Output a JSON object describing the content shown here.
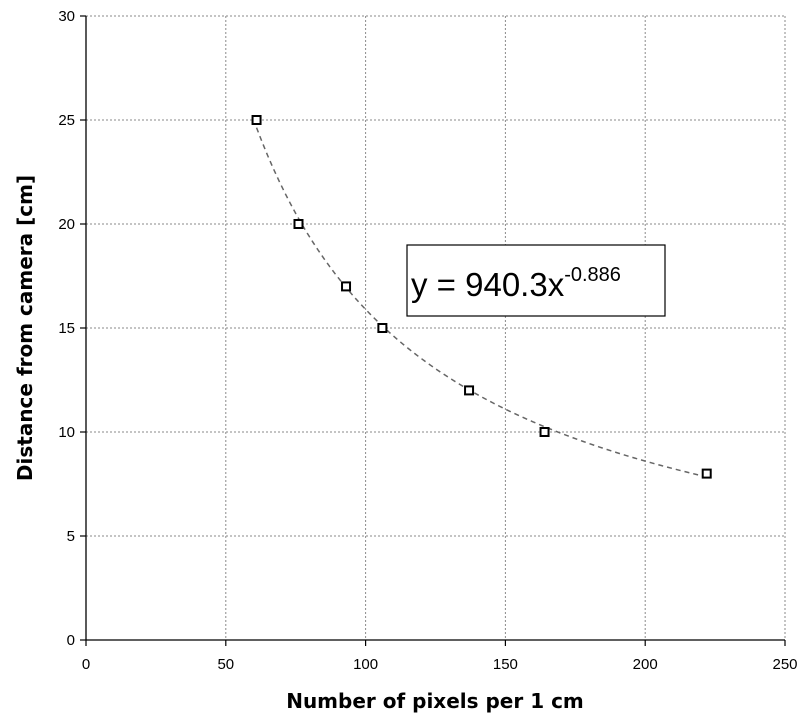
{
  "chart_data": {
    "type": "scatter",
    "xlabel": "Number of pixels per 1 cm",
    "ylabel": "Distance from camera [cm]",
    "xlim": [
      0,
      250
    ],
    "ylim": [
      0,
      30
    ],
    "x_ticks": [
      "0",
      "50",
      "100",
      "150",
      "200",
      "250"
    ],
    "y_ticks": [
      "0",
      "5",
      "10",
      "15",
      "20",
      "25",
      "30"
    ],
    "grid": true,
    "series": [
      {
        "marker": "square",
        "color": "#000000",
        "points": [
          {
            "x": 61,
            "y": 25
          },
          {
            "x": 76,
            "y": 20
          },
          {
            "x": 93,
            "y": 17
          },
          {
            "x": 106,
            "y": 15
          },
          {
            "x": 137,
            "y": 12
          },
          {
            "x": 164,
            "y": 10
          },
          {
            "x": 222,
            "y": 8
          }
        ]
      }
    ],
    "trendline": {
      "type": "power",
      "coefficient": 940.3,
      "exponent": -0.886,
      "x_from": 61,
      "x_to": 222,
      "style": "dashed",
      "color": "#666666"
    },
    "equation": {
      "prefix": "y = 940.3x",
      "superscript": "-0.886"
    }
  }
}
